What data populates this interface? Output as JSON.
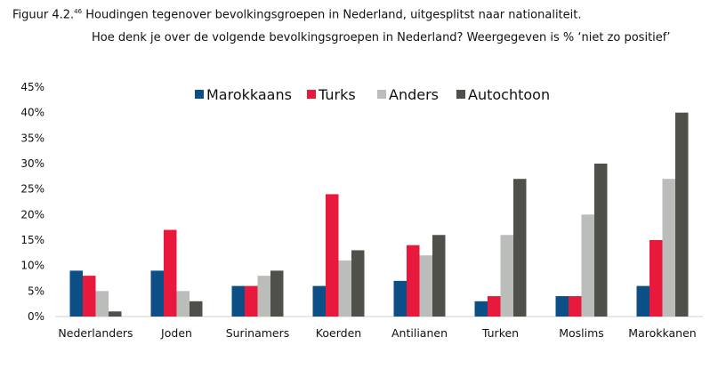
{
  "caption": {
    "label": "Figuur 4.2.",
    "footnote": "46",
    "title": "Houdingen tegenover bevolkingsgroepen in Nederland, uitgesplitst naar nationaliteit.",
    "subtitle": "Hoe denk je over de volgende bevolkingsgroepen in Nederland? Weergegeven is % ‘niet zo positief’"
  },
  "chart_data": {
    "type": "bar",
    "categories": [
      "Nederlanders",
      "Joden",
      "Surinamers",
      "Koerden",
      "Antilianen",
      "Turken",
      "Moslims",
      "Marokkanen"
    ],
    "series": [
      {
        "name": "Marokkaans",
        "color": "#0b4f86",
        "values": [
          9,
          9,
          6,
          6,
          7,
          3,
          4,
          6
        ]
      },
      {
        "name": "Turks",
        "color": "#e8193c",
        "values": [
          8,
          17,
          6,
          24,
          14,
          4,
          4,
          15
        ]
      },
      {
        "name": "Anders",
        "color": "#bbbdba",
        "values": [
          5,
          5,
          8,
          11,
          12,
          16,
          20,
          27
        ]
      },
      {
        "name": "Autochtoon",
        "color": "#4f504a",
        "values": [
          1,
          3,
          9,
          13,
          16,
          27,
          30,
          40
        ]
      }
    ],
    "ylim": [
      0,
      45
    ],
    "yticks": [
      "0%",
      "5%",
      "10%",
      "15%",
      "20%",
      "25%",
      "30%",
      "35%",
      "40%",
      "45%"
    ],
    "grid": false,
    "legend": "top"
  }
}
